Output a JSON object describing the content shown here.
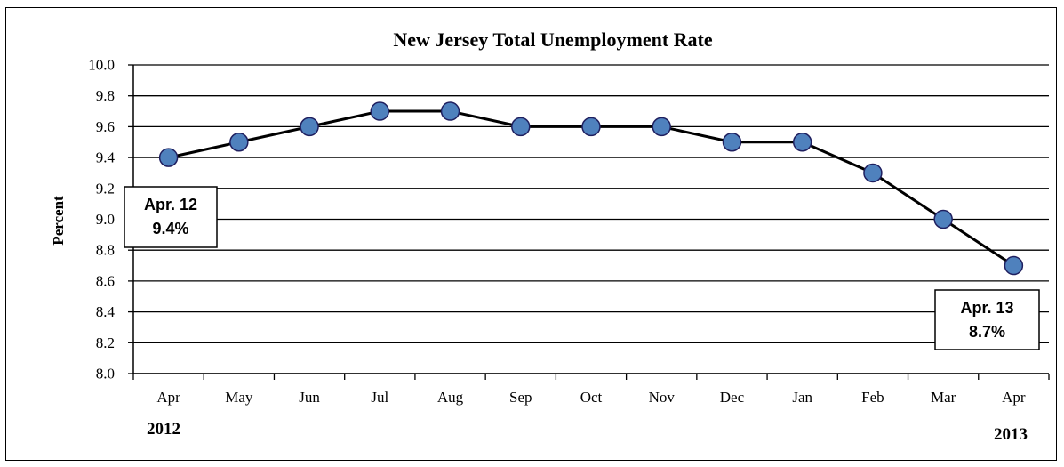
{
  "chart_data": {
    "type": "line",
    "title": "New Jersey Total Unemployment Rate",
    "ylabel": "Percent",
    "xlabel": "",
    "ylim": [
      8.0,
      10.0
    ],
    "yticks": [
      "8.0",
      "8.2",
      "8.4",
      "8.6",
      "8.8",
      "9.0",
      "9.2",
      "9.4",
      "9.6",
      "9.8",
      "10.0"
    ],
    "categories": [
      "Apr",
      "May",
      "Jun",
      "Jul",
      "Aug",
      "Sep",
      "Oct",
      "Nov",
      "Dec",
      "Jan",
      "Feb",
      "Mar",
      "Apr"
    ],
    "values": [
      9.4,
      9.5,
      9.6,
      9.7,
      9.7,
      9.6,
      9.6,
      9.6,
      9.5,
      9.5,
      9.3,
      9.0,
      8.7
    ],
    "year_start": "2012",
    "year_end": "2013",
    "grid": true,
    "colors": {
      "line": "#000000",
      "marker_fill": "#4f81bd",
      "marker_stroke": "#1f1f5f"
    },
    "callouts": [
      {
        "line1": "Apr. 12",
        "line2": "9.4%"
      },
      {
        "line1": "Apr. 13",
        "line2": "8.7%"
      }
    ]
  }
}
